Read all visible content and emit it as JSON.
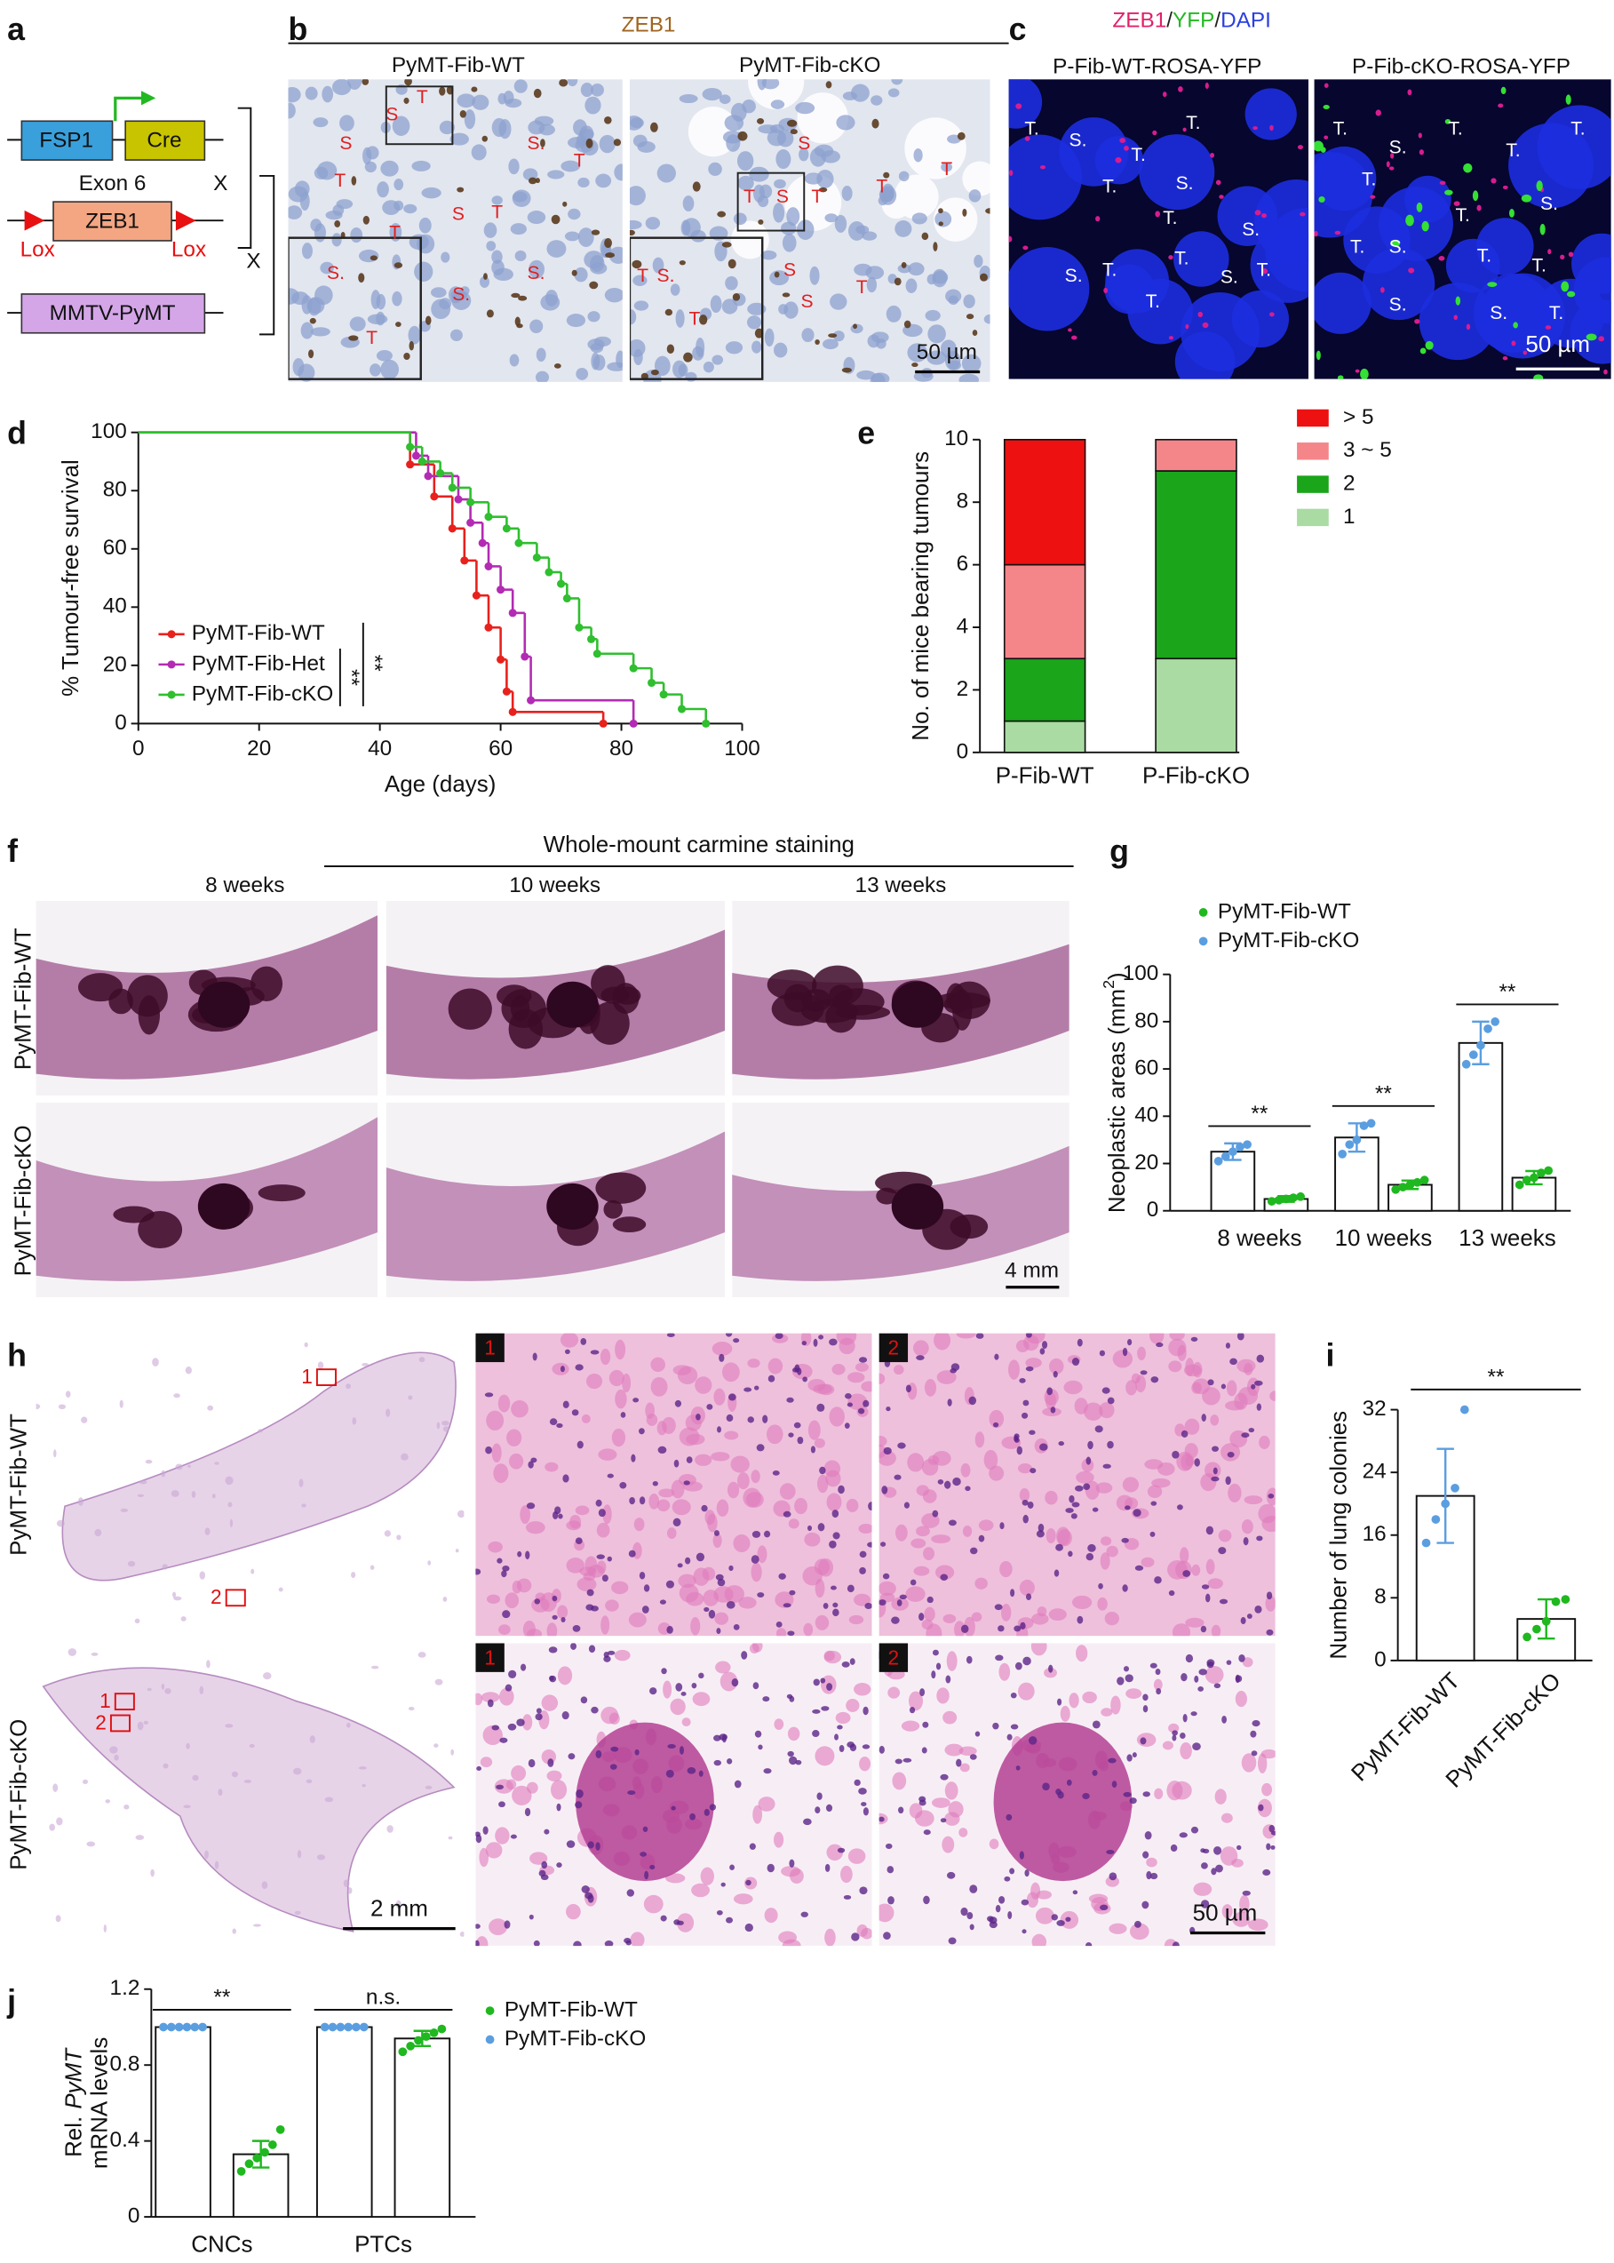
{
  "panel_letters": [
    "a",
    "b",
    "c",
    "d",
    "e",
    "f",
    "g",
    "h",
    "i",
    "j"
  ],
  "diagram": {
    "fsp1": "FSP1",
    "cre": "Cre",
    "exon": "Exon 6",
    "zeb1": "ZEB1",
    "lox": [
      "Lox",
      "Lox"
    ],
    "pymt": "MMTV-PyMT",
    "cross": [
      "X",
      "X"
    ]
  },
  "ihc": {
    "title": "ZEB1",
    "columns": [
      "PyMT-Fib-WT",
      "PyMT-Fib-cKO"
    ],
    "scale_bar": "50 µm",
    "wt_marks": [
      "S",
      "T",
      "S",
      "S.",
      "T",
      "T",
      "S",
      "T",
      "T",
      "S.",
      "T",
      "S.",
      "S."
    ],
    "cko_marks": [
      "S",
      "S",
      "T",
      "T",
      "T",
      "T",
      "S.",
      "T",
      "T",
      "S",
      "S",
      "T"
    ]
  },
  "fluorescence": {
    "title": [
      "ZEB1",
      "/",
      "YFP",
      "/",
      "DAPI"
    ],
    "title_colors": [
      "#e0206a",
      "#222222",
      "#22b822",
      "#222222",
      "#2a3fe0"
    ],
    "columns": [
      "P-Fib-WT-ROSA-YFP",
      "P-Fib-cKO-ROSA-YFP"
    ],
    "scale_bar": "50 µm",
    "wt_marks": [
      "T.",
      "S.",
      "T.",
      "T.",
      "T.",
      "S.",
      "T.",
      "T.",
      "S.",
      "T.",
      "S.",
      "T.",
      "S.",
      "T."
    ],
    "cko_marks": [
      "T.",
      "S.",
      "T.",
      "T.",
      "T.",
      "S.",
      "T.",
      "T.",
      "S.",
      "T.",
      "T.",
      "T.",
      "S.",
      "S.",
      "T."
    ]
  },
  "whole_mount": {
    "title": "Whole-mount carmine staining",
    "columns": [
      "8 weeks",
      "10 weeks",
      "13 weeks"
    ],
    "rows": [
      "PyMT-Fib-WT",
      "PyMT-Fib-cKO"
    ],
    "scale_bar": "4 mm"
  },
  "lung": {
    "rows": [
      "PyMT-Fib-WT",
      "PyMT-Fib-cKO"
    ],
    "box_labels": [
      "1",
      "2"
    ],
    "scale_bars": [
      "2 mm",
      "50 µm"
    ]
  },
  "chart_data": [
    {
      "type": "survival",
      "xlabel": "Age (days)",
      "ylabel": "% Tumour-free survival",
      "xlim": [
        0,
        100
      ],
      "xticks": [
        0,
        20,
        40,
        60,
        80,
        100
      ],
      "ylim": [
        0,
        100
      ],
      "yticks": [
        0,
        20,
        40,
        60,
        80,
        100
      ],
      "series": [
        {
          "name": "PyMT-Fib-WT",
          "color": "#e8211d",
          "x": [
            0,
            45,
            49,
            52,
            54,
            56,
            58,
            60,
            61,
            62,
            77
          ],
          "values": [
            100,
            89,
            78,
            67,
            56,
            44,
            33,
            22,
            11,
            4,
            0
          ]
        },
        {
          "name": "PyMT-Fib-Het",
          "color": "#b32bb3",
          "x": [
            0,
            46,
            48,
            53,
            55,
            57,
            58,
            60,
            62,
            64,
            65,
            82
          ],
          "values": [
            100,
            92,
            85,
            77,
            69,
            62,
            54,
            46,
            38,
            23,
            8,
            0
          ]
        },
        {
          "name": "PyMT-Fib-cKO",
          "color": "#2fbf2f",
          "x": [
            0,
            45,
            47,
            50,
            52,
            55,
            58,
            61,
            63,
            66,
            68,
            70,
            71,
            73,
            75,
            76,
            82,
            85,
            87,
            90,
            94
          ],
          "values": [
            100,
            95,
            90,
            86,
            81,
            76,
            71,
            67,
            62,
            57,
            52,
            48,
            43,
            33,
            29,
            24,
            19,
            14,
            10,
            5,
            0
          ]
        }
      ],
      "annotations": [
        "**",
        "**"
      ]
    },
    {
      "type": "stacked_bar",
      "ylabel": "No. of mice bearing tumours",
      "categories": [
        "P-Fib-WT",
        "P-Fib-cKO"
      ],
      "ylim": [
        0,
        10
      ],
      "yticks": [
        0,
        2,
        4,
        6,
        8,
        10
      ],
      "series": [
        {
          "name": "1",
          "color": "#a9dba3",
          "values": [
            1,
            3
          ]
        },
        {
          "name": "2",
          "color": "#1aa51a",
          "values": [
            2,
            6
          ]
        },
        {
          "name": "3 ~ 5",
          "color": "#f4868a",
          "values": [
            3,
            1
          ]
        },
        {
          "name": "> 5",
          "color": "#ee1111",
          "values": [
            4,
            0
          ]
        }
      ]
    },
    {
      "type": "dot_bar",
      "ylabel": [
        "Neoplastic areas (mm",
        "2",
        ")"
      ],
      "categories": [
        "8 weeks",
        "10 weeks",
        "13 weeks"
      ],
      "ylim": [
        0,
        100
      ],
      "yticks": [
        0,
        20,
        40,
        60,
        80,
        100
      ],
      "series": [
        {
          "name": "PyMT-Fib-WT",
          "color": "#1fb81f",
          "values": [
            5,
            11,
            14
          ],
          "errors": [
            1.2,
            1.8,
            2.8
          ],
          "points": [
            [
              4,
              4.5,
              5,
              5.5,
              6
            ],
            [
              9,
              10,
              11,
              12,
              13
            ],
            [
              11,
              13,
              14,
              16,
              17
            ]
          ]
        },
        {
          "name": "PyMT-Fib-cKO",
          "color": "#5b9ee0",
          "values": [
            25,
            31,
            71
          ],
          "errors": [
            3.5,
            6,
            9
          ],
          "points": [
            [
              21,
              23,
              25,
              27,
              28
            ],
            [
              24,
              28,
              30,
              36,
              37
            ],
            [
              62,
              66,
              70,
              77,
              80
            ]
          ]
        }
      ],
      "annotations": [
        "**",
        "**",
        "**"
      ]
    },
    {
      "type": "dot_bar",
      "ylabel": "Number of lung colonies",
      "categories": [
        "PyMT-Fib-WT",
        "PyMT-Fib-cKO"
      ],
      "ylim": [
        0,
        32
      ],
      "yticks": [
        0,
        8,
        16,
        24,
        32
      ],
      "colors": [
        "#5b9ee0",
        "#1fb81f"
      ],
      "values": [
        21,
        5.3
      ],
      "errors": [
        6,
        2.5
      ],
      "points": [
        [
          15,
          18,
          20,
          22,
          32
        ],
        [
          3,
          4,
          5,
          7.5,
          7.8
        ]
      ],
      "annotations": [
        "**"
      ]
    },
    {
      "type": "dot_bar",
      "ylabel": [
        "Rel.",
        "PyMT",
        "mRNA levels"
      ],
      "categories": [
        "CNCs",
        "PTCs"
      ],
      "ylim": [
        0,
        1.2
      ],
      "yticks": [
        0,
        0.4,
        0.8,
        1.2
      ],
      "series": [
        {
          "name": "PyMT-Fib-WT",
          "color": "#1fb81f",
          "values": [
            0.33,
            0.94
          ],
          "errors": [
            0.07,
            0.04
          ],
          "points": [
            [
              0.24,
              0.28,
              0.31,
              0.34,
              0.38,
              0.46
            ],
            [
              0.87,
              0.9,
              0.93,
              0.95,
              0.97,
              0.99
            ]
          ]
        },
        {
          "name": "PyMT-Fib-cKO",
          "color": "#5b9ee0",
          "values": [
            1,
            1
          ],
          "errors": [
            0,
            0
          ],
          "points": [
            [
              1,
              1,
              1,
              1,
              1,
              1
            ],
            [
              1,
              1,
              1,
              1,
              1,
              1
            ]
          ]
        }
      ],
      "annotations": [
        "**",
        "n.s."
      ]
    }
  ]
}
